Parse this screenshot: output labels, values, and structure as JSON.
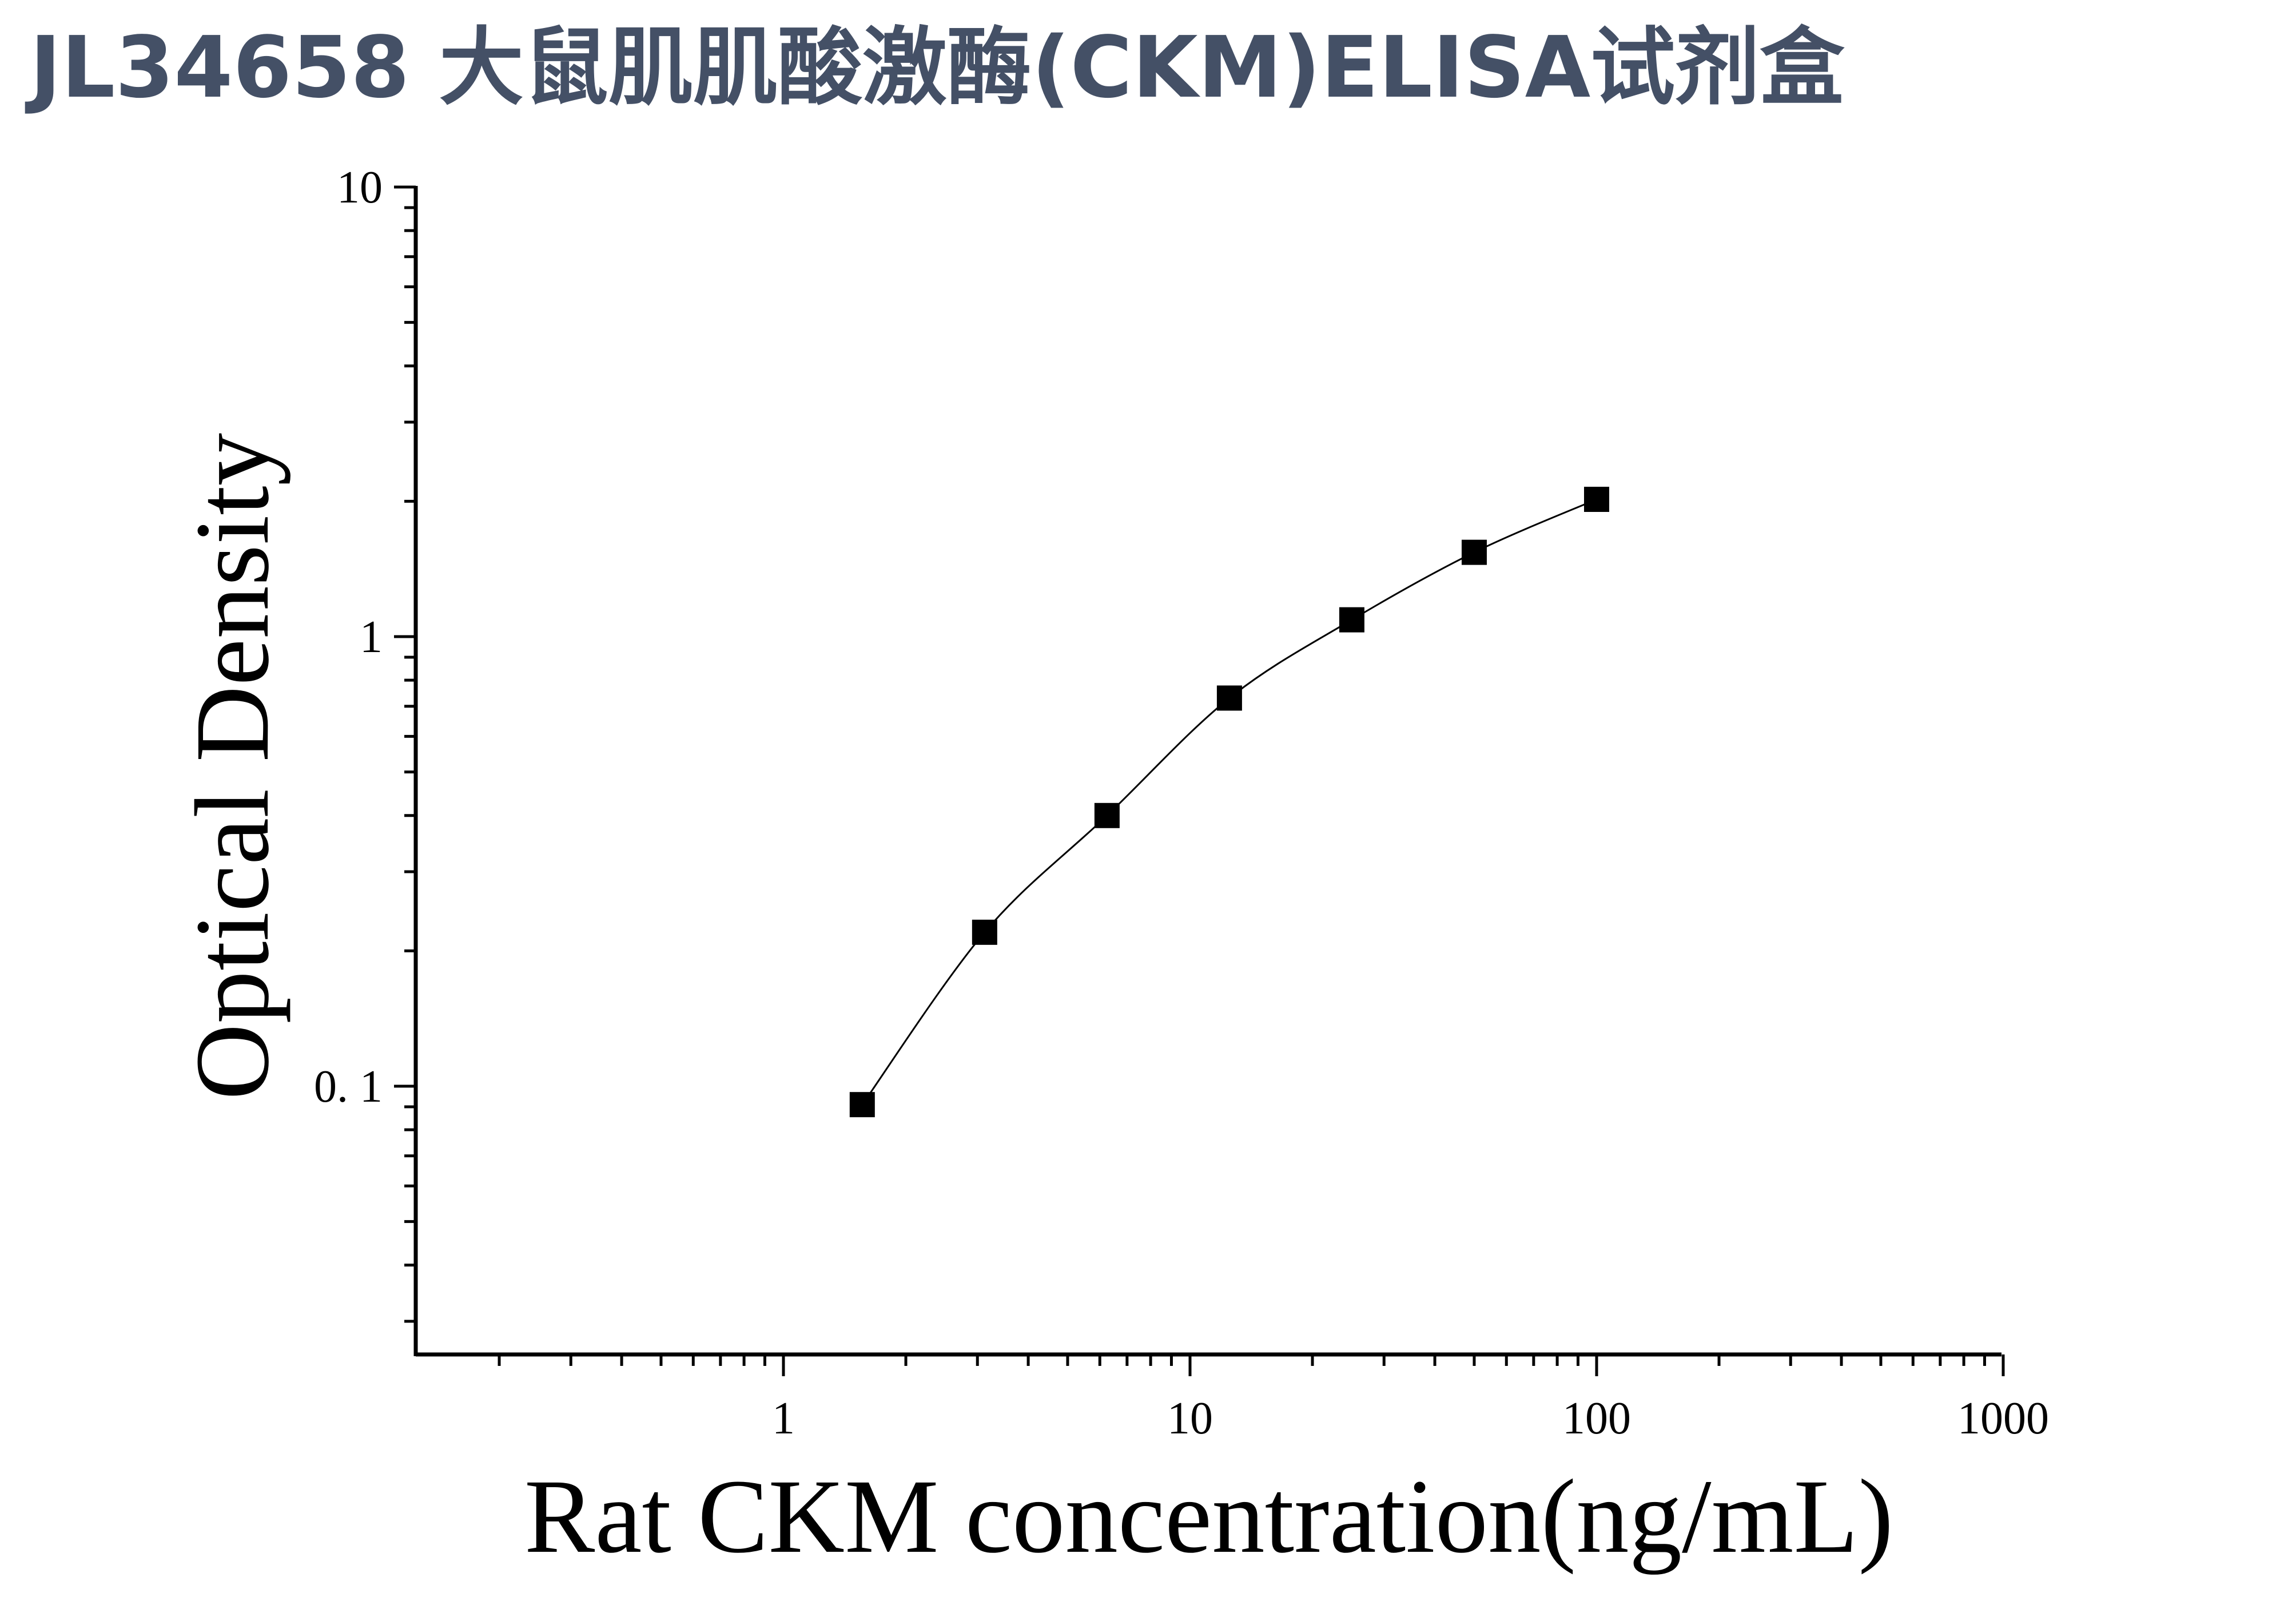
{
  "title": "JL34658 大鼠肌肌酸激酶(CKM)ELISA试剂盒",
  "chart_data": {
    "type": "scatter",
    "xlabel": "Rat CKM concentration(ng/mL)",
    "ylabel": "Optical Density",
    "x_scale": "log",
    "y_scale": "log",
    "xlim": [
      0.1,
      1000
    ],
    "ylim": [
      0.025,
      10
    ],
    "x_ticks": [
      1,
      10,
      100,
      1000
    ],
    "x_tick_labels": [
      "1",
      "10",
      "100",
      "1000"
    ],
    "y_ticks": [
      0.1,
      1,
      10
    ],
    "y_tick_labels": [
      "0. 1",
      "1",
      "10"
    ],
    "grid": false,
    "marker": "square",
    "marker_color": "#000000",
    "series": [
      {
        "x": [
          1.5625,
          3.125,
          6.25,
          12.5,
          25,
          50,
          100
        ],
        "y": [
          0.091,
          0.22,
          0.4,
          0.73,
          1.09,
          1.54,
          2.02
        ]
      }
    ],
    "fit_curve": true
  }
}
